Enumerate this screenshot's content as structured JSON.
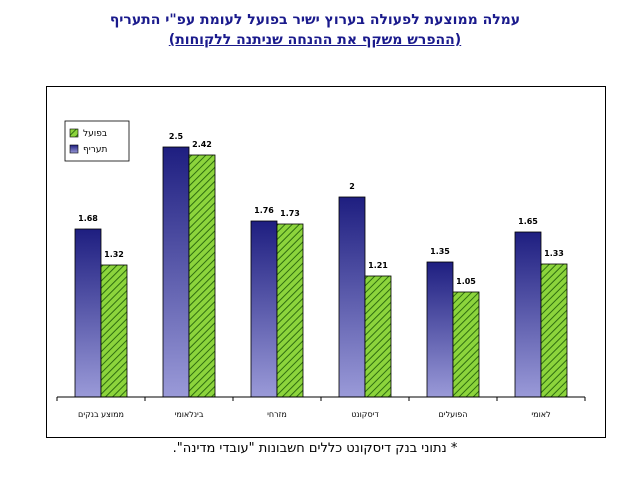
{
  "title": "עמלה ממוצעת לפעולה בערוץ ישיר בפועל לעומת עפ\"י התעריף",
  "subtitle": "(ההפרש משקף את ההנחה שניתנה ללקוחות)",
  "footnote": "* נתוני בנק דיסקונט כללים חשבונות \"עובדי מדינה\".",
  "colors": {
    "tariff": "#2a2a8a",
    "actual": "#6ab82c",
    "title": "#1a1a8c"
  },
  "chart_data": {
    "type": "bar",
    "title": "עמלה ממוצעת לפעולה בערוץ ישיר בפועל לעומת עפ\"י התעריף",
    "subtitle": "(ההפרש משקף את ההנחה שניתנה ללקוחות)",
    "categories": [
      "ממוצע בנקים",
      "בינלאומי",
      "מזרחי",
      "דיסקונט",
      "הפועלים",
      "לאומי"
    ],
    "series": [
      {
        "name": "תעריף",
        "values": [
          1.68,
          2.5,
          1.76,
          2,
          1.35,
          1.65
        ]
      },
      {
        "name": "בפועל",
        "values": [
          1.32,
          2.42,
          1.73,
          1.21,
          1.05,
          1.33
        ]
      }
    ],
    "data_labels": {
      "tariff": [
        "1.68",
        "2.5",
        "1.76",
        "2",
        "1.35",
        "1.65"
      ],
      "actual": [
        "1.32",
        "2.42",
        "1.73",
        "1.21",
        "1.05",
        "1.33"
      ]
    },
    "ylim": [
      0,
      3
    ],
    "grid": false,
    "legend_position": "top-left"
  }
}
